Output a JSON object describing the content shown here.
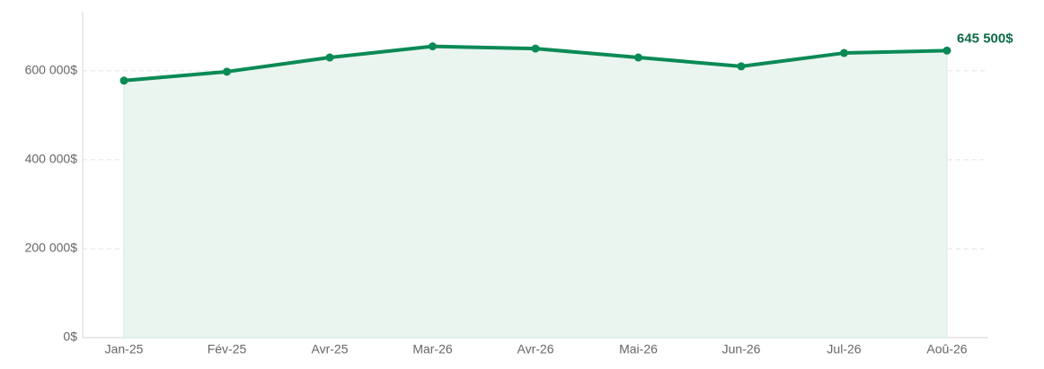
{
  "chart_data": {
    "type": "line",
    "categories": [
      "Jan-25",
      "Fév-25",
      "Avr-25",
      "Mar-26",
      "Avr-26",
      "Mai-26",
      "Jun-26",
      "Jul-26",
      "Aoû-26"
    ],
    "values": [
      578000,
      598000,
      630000,
      655000,
      650000,
      630000,
      610000,
      640000,
      645500
    ],
    "value_labels": [
      null,
      null,
      null,
      null,
      null,
      null,
      null,
      null,
      "645 500$"
    ],
    "color": "#0a8a55",
    "area_color": "#eaf5f0",
    "ylim": [
      0,
      733000
    ],
    "yticks": [
      {
        "value": 0,
        "label": "0$"
      },
      {
        "value": 200000,
        "label": "200 000$"
      },
      {
        "value": 400000,
        "label": "400 000$"
      },
      {
        "value": 600000,
        "label": "600 000$"
      }
    ],
    "grid": true
  }
}
